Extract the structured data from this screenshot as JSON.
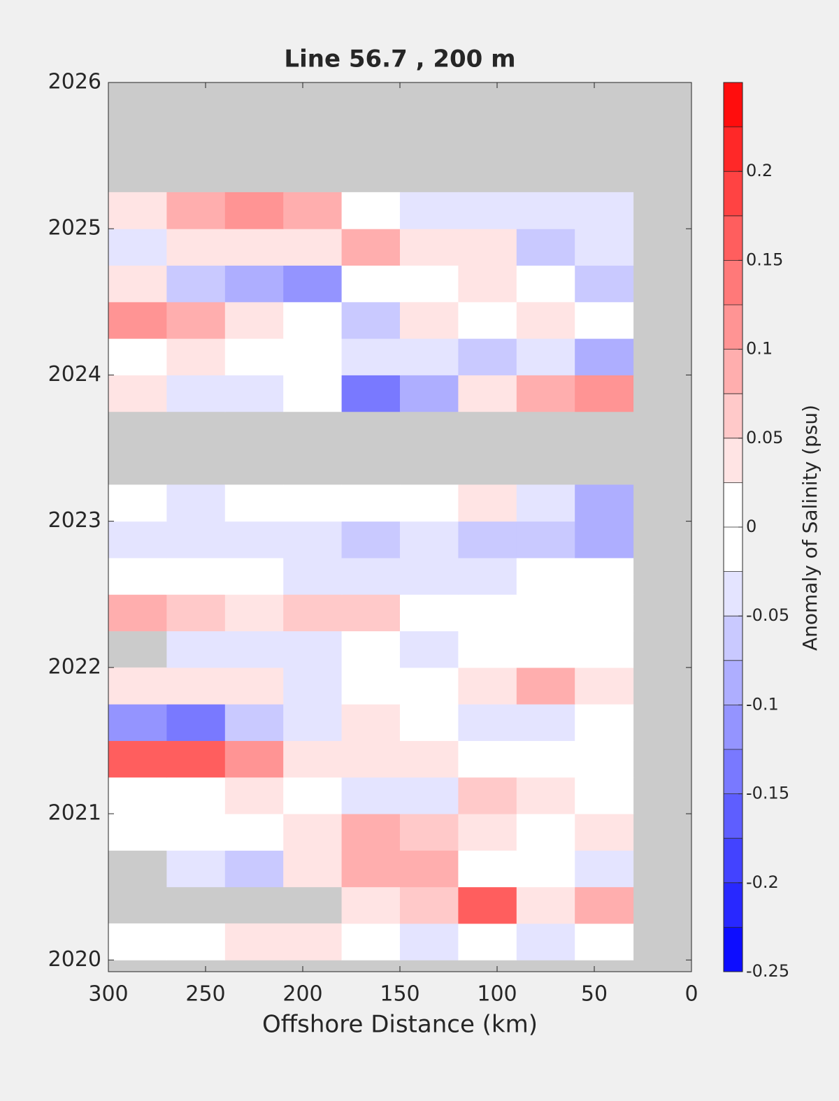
{
  "chart_data": {
    "type": "contour",
    "title": "Line 56.7 , 200 m",
    "xlabel": "Offshore Distance (km)",
    "colorbar_label": "Anomaly of Salinity (psu)",
    "xlim": [
      300,
      0
    ],
    "xticks": [
      300,
      250,
      200,
      150,
      100,
      50,
      0
    ],
    "ylim": [
      2019.92,
      2026
    ],
    "yticks": [
      2020,
      2021,
      2022,
      2023,
      2024,
      2025,
      2026
    ],
    "clim": [
      -0.25,
      0.25
    ],
    "cticks": [
      -0.25,
      -0.2,
      -0.15,
      -0.1,
      -0.05,
      0,
      0.05,
      0.1,
      0.15,
      0.2
    ],
    "color_levels": 20,
    "colormap": [
      "#0000ff",
      "#ffffff",
      "#ff0000"
    ],
    "nan_color": "#cbcbcb",
    "x_bins": [
      300,
      270,
      240,
      210,
      180,
      150,
      120,
      90,
      60,
      30
    ],
    "y_bins": [
      2020,
      2020.25,
      2020.5,
      2020.75,
      2021,
      2021.25,
      2021.5,
      2021.75,
      2022,
      2022.25,
      2022.5,
      2022.75,
      2023,
      2023.25,
      2023.5,
      2023.75,
      2024,
      2024.25,
      2024.5,
      2024.75,
      2025,
      2025.25
    ],
    "z": [
      [
        0.02,
        0.02,
        0.03,
        0.04,
        0,
        -0.03,
        -0.02,
        -0.03,
        0
      ],
      [
        null,
        null,
        null,
        null,
        0.03,
        0.06,
        0.15,
        0.03,
        0.1
      ],
      [
        null,
        -0.03,
        -0.06,
        0.05,
        0.1,
        0.08,
        0.02,
        0,
        -0.03
      ],
      [
        0,
        0,
        0.02,
        0.05,
        0.08,
        0.06,
        0.03,
        0,
        0.05
      ],
      [
        0.02,
        0.02,
        0.04,
        0,
        -0.03,
        -0.03,
        0.07,
        0.05,
        0
      ],
      [
        0.15,
        0.15,
        0.12,
        0.05,
        0.03,
        0.03,
        0.02,
        0,
        0.02
      ],
      [
        -0.1,
        -0.15,
        -0.07,
        -0.04,
        0.03,
        0.02,
        -0.03,
        -0.03,
        0
      ],
      [
        0.03,
        0.04,
        0.03,
        -0.03,
        0,
        0.02,
        0.04,
        0.08,
        0.05
      ],
      [
        null,
        -0.03,
        -0.04,
        -0.04,
        -0.02,
        -0.03,
        0,
        0,
        0
      ],
      [
        0.1,
        0.06,
        0.04,
        0.07,
        0.06,
        0.02,
        0,
        0,
        -0.02
      ],
      [
        0.02,
        0,
        -0.02,
        -0.03,
        -0.03,
        -0.04,
        -0.03,
        -0.02,
        0
      ],
      [
        -0.04,
        -0.03,
        -0.04,
        -0.05,
        -0.06,
        -0.05,
        -0.06,
        -0.07,
        -0.08
      ],
      [
        -0.02,
        -0.03,
        0.02,
        0.02,
        -0.02,
        0.02,
        0.03,
        -0.03,
        -0.08
      ],
      [
        null,
        null,
        null,
        null,
        null,
        null,
        null,
        null,
        null
      ],
      [
        null,
        null,
        null,
        null,
        null,
        null,
        null,
        null,
        null
      ],
      [
        0.05,
        -0.04,
        -0.05,
        -0.02,
        -0.15,
        -0.08,
        0.05,
        0.08,
        0.12
      ],
      [
        0.02,
        0.03,
        0,
        -0.02,
        -0.04,
        -0.03,
        -0.06,
        -0.05,
        -0.08
      ],
      [
        0.12,
        0.08,
        0.03,
        -0.02,
        -0.06,
        0.04,
        0.02,
        0.04,
        0.02
      ],
      [
        0.05,
        -0.06,
        -0.08,
        -0.1,
        -0.02,
        0.02,
        0.05,
        0.02,
        -0.06
      ],
      [
        -0.05,
        0.03,
        0.05,
        0.05,
        0.1,
        0.03,
        0.03,
        -0.06,
        -0.05
      ],
      [
        0.05,
        0.08,
        0.12,
        0.08,
        0.02,
        -0.03,
        -0.03,
        -0.04,
        -0.04
      ]
    ]
  }
}
